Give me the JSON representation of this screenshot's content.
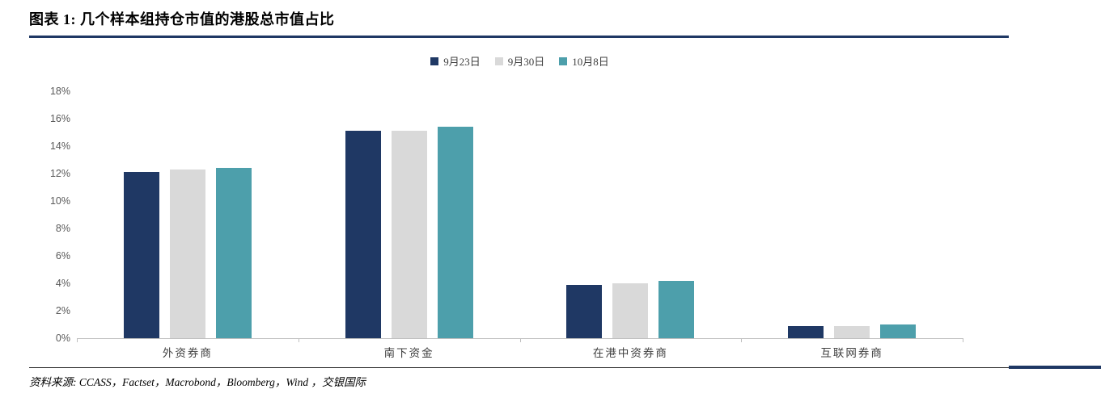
{
  "title": "图表 1: 几个样本组持仓市值的港股总市值占比",
  "source": "资料来源: CCASS，Factset，Macrobond，Bloomberg，Wind ，交银国际",
  "chart_data": {
    "type": "bar",
    "title": "图表 1: 几个样本组持仓市值的港股总市值占比",
    "categories": [
      "外资券商",
      "南下资金",
      "在港中资券商",
      "互联网券商"
    ],
    "series": [
      {
        "name": "9月23日",
        "color": "#1f3864",
        "values": [
          12.1,
          15.1,
          3.9,
          0.9
        ]
      },
      {
        "name": "9月30日",
        "color": "#d9d9d9",
        "values": [
          12.3,
          15.1,
          4.0,
          0.9
        ]
      },
      {
        "name": "10月8日",
        "color": "#4d9fab",
        "values": [
          12.4,
          15.4,
          4.2,
          1.0
        ]
      }
    ],
    "ylim": [
      0,
      18
    ],
    "ytick_step": 2,
    "ytick_suffix": "%",
    "grid": false,
    "legend_position": "top-center",
    "xlabel": "",
    "ylabel": ""
  }
}
